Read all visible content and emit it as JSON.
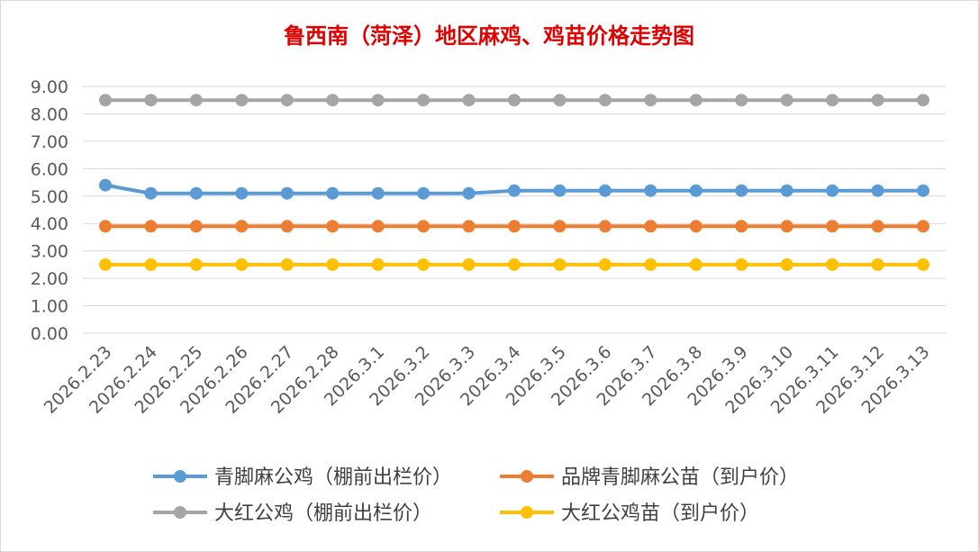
{
  "chart_data": {
    "type": "line",
    "title": "鲁西南（菏泽）地区麻鸡、鸡苗价格走势图",
    "xlabel": "",
    "ylabel": "",
    "ylim": [
      0,
      9
    ],
    "ystep": 1,
    "ytick_labels": [
      "0.00",
      "1.00",
      "2.00",
      "3.00",
      "4.00",
      "5.00",
      "6.00",
      "7.00",
      "8.00",
      "9.00"
    ],
    "grid": true,
    "legend_position": "bottom",
    "categories": [
      "2026.2.23",
      "2026.2.24",
      "2026.2.25",
      "2026.2.26",
      "2026.2.27",
      "2026.2.28",
      "2026.3.1",
      "2026.3.2",
      "2026.3.3",
      "2026.3.4",
      "2026.3.5",
      "2026.3.6",
      "2026.3.7",
      "2026.3.8",
      "2026.3.9",
      "2026.3.10",
      "2026.3.11",
      "2026.3.12",
      "2026.3.13"
    ],
    "series": [
      {
        "name": "青脚麻公鸡（棚前出栏价）",
        "color": "#5b9bd5",
        "values": [
          5.4,
          5.1,
          5.1,
          5.1,
          5.1,
          5.1,
          5.1,
          5.1,
          5.1,
          5.2,
          5.2,
          5.2,
          5.2,
          5.2,
          5.2,
          5.2,
          5.2,
          5.2,
          5.2
        ]
      },
      {
        "name": "品牌青脚麻公苗（到户价）",
        "color": "#ed7d31",
        "values": [
          3.9,
          3.9,
          3.9,
          3.9,
          3.9,
          3.9,
          3.9,
          3.9,
          3.9,
          3.9,
          3.9,
          3.9,
          3.9,
          3.9,
          3.9,
          3.9,
          3.9,
          3.9,
          3.9
        ]
      },
      {
        "name": "大红公鸡（棚前出栏价）",
        "color": "#a5a5a5",
        "values": [
          8.5,
          8.5,
          8.5,
          8.5,
          8.5,
          8.5,
          8.5,
          8.5,
          8.5,
          8.5,
          8.5,
          8.5,
          8.5,
          8.5,
          8.5,
          8.5,
          8.5,
          8.5,
          8.5
        ]
      },
      {
        "name": "大红公鸡苗（到户价）",
        "color": "#ffc000",
        "values": [
          2.5,
          2.5,
          2.5,
          2.5,
          2.5,
          2.5,
          2.5,
          2.5,
          2.5,
          2.5,
          2.5,
          2.5,
          2.5,
          2.5,
          2.5,
          2.5,
          2.5,
          2.5,
          2.5
        ]
      }
    ]
  }
}
